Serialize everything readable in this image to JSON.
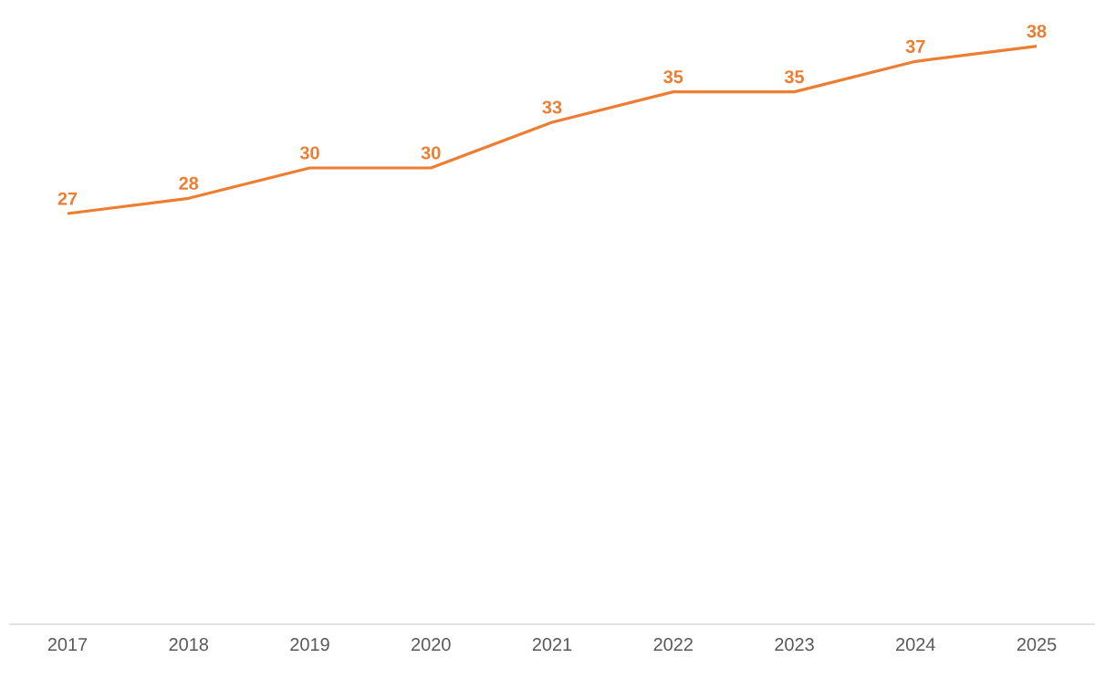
{
  "chart_data": {
    "type": "line",
    "categories": [
      "2017",
      "2018",
      "2019",
      "2020",
      "2021",
      "2022",
      "2023",
      "2024",
      "2025"
    ],
    "series": [
      {
        "color": "#ed7d31",
        "values": [
          27,
          28,
          30,
          30,
          33,
          35,
          35,
          37,
          38
        ]
      }
    ],
    "tick_labels": "x",
    "data_labels": true,
    "grid": false,
    "line_style": "solid"
  }
}
